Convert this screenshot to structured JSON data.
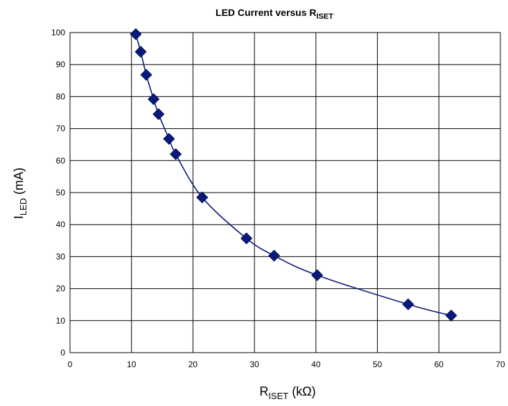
{
  "chart_data": {
    "type": "scatter",
    "title": {
      "main": "LED Current versus R",
      "sub": "ISET"
    },
    "xlabel": {
      "main": "R",
      "sub": "ISET",
      "rest": " (kΩ)"
    },
    "ylabel": {
      "main": "I",
      "sub": "LED",
      "rest": " (mA)"
    },
    "xlim": [
      0,
      70
    ],
    "ylim": [
      0,
      100
    ],
    "x_ticks": [
      0,
      10,
      20,
      30,
      40,
      50,
      60,
      70
    ],
    "y_ticks": [
      0,
      10,
      20,
      30,
      40,
      50,
      60,
      70,
      80,
      90,
      100
    ],
    "grid": true,
    "legend": "none",
    "series": [
      {
        "color": "#0a1a7a",
        "marker": "diamond",
        "line": "smooth",
        "points": [
          {
            "x": 10.7,
            "y": 99.5
          },
          {
            "x": 11.5,
            "y": 94
          },
          {
            "x": 12.4,
            "y": 86.8
          },
          {
            "x": 13.6,
            "y": 79.2
          },
          {
            "x": 14.4,
            "y": 74.5
          },
          {
            "x": 16.1,
            "y": 66.8
          },
          {
            "x": 17.2,
            "y": 62
          },
          {
            "x": 21.5,
            "y": 48.5
          },
          {
            "x": 28.7,
            "y": 35.7
          },
          {
            "x": 33.2,
            "y": 30.3
          },
          {
            "x": 40.2,
            "y": 24.2
          },
          {
            "x": 55.0,
            "y": 15.1
          },
          {
            "x": 62.0,
            "y": 11.6
          }
        ]
      }
    ]
  }
}
